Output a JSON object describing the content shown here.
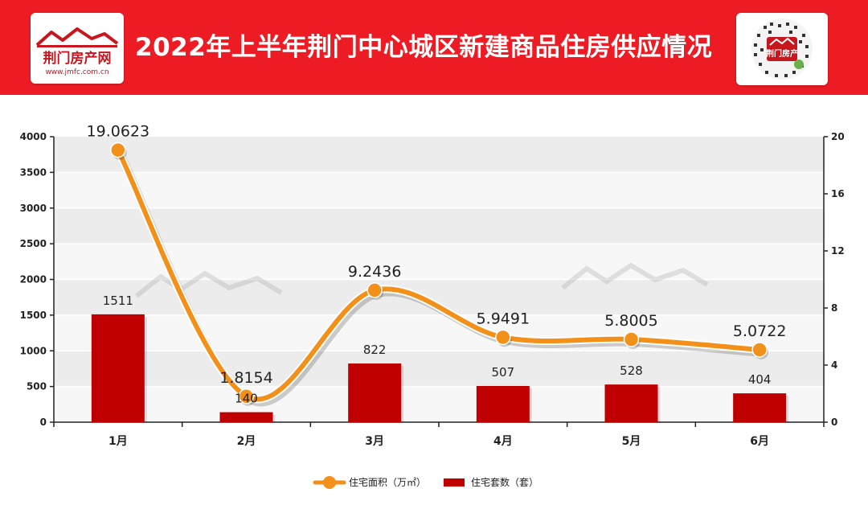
{
  "header": {
    "title": "2022年上半年荆门中心城区新建商品住房供应情况",
    "logo_text": "荆门房产网",
    "logo_sub": "www.jmfc.com.cn",
    "qr_label": "荆门房产",
    "brand_color": "#ed1c24"
  },
  "chart_data": {
    "type": "bar",
    "categories": [
      "1月",
      "2月",
      "3月",
      "4月",
      "5月",
      "6月"
    ],
    "series": [
      {
        "name": "住宅面积（万㎡）",
        "type": "line",
        "axis": "right",
        "color": "#f39019",
        "values": [
          19.0623,
          1.8154,
          9.2436,
          5.9491,
          5.8005,
          5.0722
        ],
        "labels": [
          "19.0623",
          "1.8154",
          "9.2436",
          "5.9491",
          "5.8005",
          "5.0722"
        ]
      },
      {
        "name": "住宅套数（套）",
        "type": "bar",
        "axis": "left",
        "color": "#c00000",
        "values": [
          1511,
          140,
          822,
          507,
          528,
          404
        ],
        "labels": [
          "1511",
          "140",
          "822",
          "507",
          "528",
          "404"
        ]
      }
    ],
    "left_axis": {
      "ylim": [
        0,
        4000
      ],
      "ticks": [
        "0",
        "500",
        "1000",
        "1500",
        "2000",
        "2500",
        "3000",
        "3500",
        "4000"
      ]
    },
    "right_axis": {
      "ylim": [
        0,
        20
      ],
      "ticks": [
        "0",
        "4",
        "8",
        "12",
        "16",
        "20"
      ]
    },
    "grid": true,
    "legend_position": "bottom-center",
    "watermark": "荆门房产网 www.jmfc.com.cn"
  }
}
